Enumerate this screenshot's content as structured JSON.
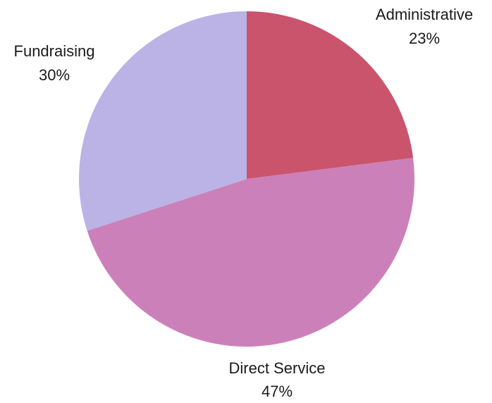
{
  "chart_data": {
    "type": "pie",
    "start": "12 o'clock",
    "direction": "clockwise",
    "categories": [
      "Administrative",
      "Direct Service",
      "Fundraising"
    ],
    "values": [
      23,
      47,
      30
    ],
    "labels": [
      "23%",
      "47%",
      "30%"
    ],
    "colors": [
      "#C9546C",
      "#CC80BA",
      "#BBB3E5"
    ]
  }
}
